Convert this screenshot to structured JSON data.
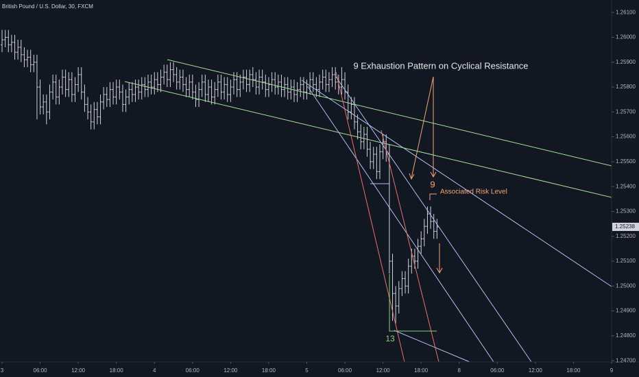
{
  "chart_data": {
    "type": "ohlc",
    "title": "British Pound / U.S. Dollar, 30, FXCM",
    "annotations": {
      "headline": "9 Exhaustion Pattern on Cyclical Resistance",
      "count_nine": "9",
      "risk": "Associated Risk Level",
      "count_thirteen": "13"
    },
    "last_price": 1.25238,
    "color": "#d1d4dc",
    "grid": false,
    "ylim": [
      1.24695,
      1.2615
    ],
    "yticks": [
      {
        "value": 1.261,
        "label": "1.26100"
      },
      {
        "value": 1.26,
        "label": "1.26000"
      },
      {
        "value": 1.259,
        "label": "1.25900"
      },
      {
        "value": 1.258,
        "label": "1.25800"
      },
      {
        "value": 1.257,
        "label": "1.25700"
      },
      {
        "value": 1.256,
        "label": "1.25600"
      },
      {
        "value": 1.255,
        "label": "1.25500"
      },
      {
        "value": 1.254,
        "label": "1.25400"
      },
      {
        "value": 1.253,
        "label": "1.25300"
      },
      {
        "value": 1.252,
        "label": "1.25200"
      },
      {
        "value": 1.251,
        "label": "1.25100"
      },
      {
        "value": 1.25,
        "label": "1.25000"
      },
      {
        "value": 1.249,
        "label": "1.24900"
      },
      {
        "value": 1.248,
        "label": "1.24800"
      },
      {
        "value": 1.247,
        "label": "1.24700"
      }
    ],
    "xlim": [
      -0.65,
      192
    ],
    "xticks": [
      {
        "value": 0,
        "label": "3"
      },
      {
        "value": 12,
        "label": "06:00"
      },
      {
        "value": 24,
        "label": "12:00"
      },
      {
        "value": 36,
        "label": "18:00"
      },
      {
        "value": 48,
        "label": "4"
      },
      {
        "value": 60,
        "label": "06:00"
      },
      {
        "value": 72,
        "label": "12:00"
      },
      {
        "value": 84,
        "label": "18:00"
      },
      {
        "value": 96,
        "label": "5"
      },
      {
        "value": 108,
        "label": "06:00"
      },
      {
        "value": 120,
        "label": "12:00"
      },
      {
        "value": 132,
        "label": "18:00"
      },
      {
        "value": 144,
        "label": "8"
      },
      {
        "value": 156,
        "label": "06:00"
      },
      {
        "value": 168,
        "label": "12:00"
      },
      {
        "value": 180,
        "label": "18:00"
      },
      {
        "value": 192,
        "label": "9"
      }
    ],
    "ohlc": [
      [
        1.2597,
        1.2603,
        1.2594,
        1.2599
      ],
      [
        1.2599,
        1.2603,
        1.2596,
        1.26
      ],
      [
        1.26,
        1.2603,
        1.2594,
        1.2597
      ],
      [
        1.2597,
        1.2601,
        1.2594,
        1.2598
      ],
      [
        1.2598,
        1.2601,
        1.2591,
        1.2594
      ],
      [
        1.2594,
        1.2599,
        1.2591,
        1.2596
      ],
      [
        1.2596,
        1.2599,
        1.259,
        1.2593
      ],
      [
        1.2593,
        1.2596,
        1.2588,
        1.2591
      ],
      [
        1.2591,
        1.2595,
        1.2588,
        1.2592
      ],
      [
        1.2592,
        1.2595,
        1.2586,
        1.2589
      ],
      [
        1.2589,
        1.2593,
        1.2586,
        1.259
      ],
      [
        1.259,
        1.2593,
        1.2567,
        1.258
      ],
      [
        1.258,
        1.2583,
        1.2569,
        1.2572
      ],
      [
        1.2572,
        1.2577,
        1.2569,
        1.2574
      ],
      [
        1.2574,
        1.2577,
        1.2565,
        1.257
      ],
      [
        1.257,
        1.2581,
        1.2567,
        1.2578
      ],
      [
        1.2578,
        1.2585,
        1.2575,
        1.2582
      ],
      [
        1.2582,
        1.2585,
        1.2573,
        1.2576
      ],
      [
        1.2576,
        1.2583,
        1.2573,
        1.258
      ],
      [
        1.258,
        1.2587,
        1.2577,
        1.2584
      ],
      [
        1.2584,
        1.2587,
        1.2576,
        1.2579
      ],
      [
        1.2579,
        1.2586,
        1.2576,
        1.2583
      ],
      [
        1.2583,
        1.2586,
        1.2574,
        1.2577
      ],
      [
        1.2577,
        1.2584,
        1.2574,
        1.2581
      ],
      [
        1.2581,
        1.2588,
        1.2578,
        1.2585
      ],
      [
        1.2585,
        1.2588,
        1.2575,
        1.2578
      ],
      [
        1.2578,
        1.2581,
        1.257,
        1.2573
      ],
      [
        1.2573,
        1.2576,
        1.2567,
        1.257
      ],
      [
        1.257,
        1.2573,
        1.2563,
        1.2566
      ],
      [
        1.2566,
        1.2574,
        1.2563,
        1.2571
      ],
      [
        1.2571,
        1.2574,
        1.2565,
        1.2568
      ],
      [
        1.2568,
        1.2577,
        1.2565,
        1.2574
      ],
      [
        1.2574,
        1.258,
        1.2571,
        1.2577
      ],
      [
        1.2577,
        1.258,
        1.2572,
        1.2575
      ],
      [
        1.2575,
        1.2582,
        1.2572,
        1.2579
      ],
      [
        1.2579,
        1.2582,
        1.2573,
        1.2576
      ],
      [
        1.2576,
        1.2583,
        1.2573,
        1.258
      ],
      [
        1.258,
        1.2583,
        1.2575,
        1.2578
      ],
      [
        1.2578,
        1.2581,
        1.257,
        1.2573
      ],
      [
        1.2573,
        1.2579,
        1.257,
        1.2576
      ],
      [
        1.2576,
        1.2582,
        1.2573,
        1.2579
      ],
      [
        1.2579,
        1.2582,
        1.2574,
        1.2577
      ],
      [
        1.2577,
        1.2583,
        1.2574,
        1.258
      ],
      [
        1.258,
        1.2583,
        1.2575,
        1.2578
      ],
      [
        1.2578,
        1.2584,
        1.2575,
        1.2581
      ],
      [
        1.2581,
        1.2584,
        1.2576,
        1.2579
      ],
      [
        1.2579,
        1.2585,
        1.2576,
        1.2582
      ],
      [
        1.2582,
        1.2585,
        1.2577,
        1.258
      ],
      [
        1.258,
        1.2586,
        1.2577,
        1.2583
      ],
      [
        1.2583,
        1.2586,
        1.2578,
        1.2581
      ],
      [
        1.2581,
        1.2587,
        1.2578,
        1.2584
      ],
      [
        1.2584,
        1.2589,
        1.2581,
        1.2586
      ],
      [
        1.2586,
        1.2589,
        1.258,
        1.2583
      ],
      [
        1.2583,
        1.259,
        1.258,
        1.2587
      ],
      [
        1.2587,
        1.259,
        1.2582,
        1.2585
      ],
      [
        1.2585,
        1.2588,
        1.2579,
        1.2582
      ],
      [
        1.2582,
        1.2587,
        1.2579,
        1.2584
      ],
      [
        1.2584,
        1.2587,
        1.2578,
        1.2581
      ],
      [
        1.2581,
        1.2584,
        1.2576,
        1.2579
      ],
      [
        1.2579,
        1.2585,
        1.2576,
        1.2582
      ],
      [
        1.2582,
        1.2585,
        1.2575,
        1.2578
      ],
      [
        1.2578,
        1.2581,
        1.2572,
        1.2575
      ],
      [
        1.2575,
        1.2582,
        1.2572,
        1.2579
      ],
      [
        1.2579,
        1.2585,
        1.2576,
        1.2582
      ],
      [
        1.2582,
        1.2585,
        1.2574,
        1.2577
      ],
      [
        1.2577,
        1.2583,
        1.2574,
        1.258
      ],
      [
        1.258,
        1.2583,
        1.2573,
        1.2576
      ],
      [
        1.2576,
        1.2582,
        1.2573,
        1.2579
      ],
      [
        1.2579,
        1.2585,
        1.2576,
        1.2582
      ],
      [
        1.2582,
        1.2585,
        1.2575,
        1.2578
      ],
      [
        1.2578,
        1.2584,
        1.2575,
        1.2581
      ],
      [
        1.2581,
        1.2584,
        1.2574,
        1.2577
      ],
      [
        1.2577,
        1.2583,
        1.2574,
        1.258
      ],
      [
        1.258,
        1.2586,
        1.2577,
        1.2583
      ],
      [
        1.2583,
        1.2586,
        1.2576,
        1.2579
      ],
      [
        1.2579,
        1.2585,
        1.2576,
        1.2582
      ],
      [
        1.2582,
        1.2587,
        1.2579,
        1.2584
      ],
      [
        1.2584,
        1.2587,
        1.2578,
        1.2581
      ],
      [
        1.2581,
        1.2587,
        1.2578,
        1.2585
      ],
      [
        1.2585,
        1.2588,
        1.258,
        1.2583
      ],
      [
        1.2583,
        1.2586,
        1.2577,
        1.258
      ],
      [
        1.258,
        1.2587,
        1.2577,
        1.2584
      ],
      [
        1.2584,
        1.2587,
        1.2579,
        1.2582
      ],
      [
        1.2582,
        1.2585,
        1.2576,
        1.2579
      ],
      [
        1.2579,
        1.2584,
        1.2576,
        1.2581
      ],
      [
        1.2581,
        1.2586,
        1.2578,
        1.2583
      ],
      [
        1.2583,
        1.2586,
        1.2577,
        1.258
      ],
      [
        1.258,
        1.2585,
        1.2577,
        1.2582
      ],
      [
        1.2582,
        1.2585,
        1.2576,
        1.2579
      ],
      [
        1.2579,
        1.2584,
        1.2576,
        1.2581
      ],
      [
        1.2581,
        1.2584,
        1.2575,
        1.2578
      ],
      [
        1.2578,
        1.2583,
        1.2575,
        1.258
      ],
      [
        1.258,
        1.2583,
        1.2574,
        1.2577
      ],
      [
        1.2577,
        1.2582,
        1.2574,
        1.2579
      ],
      [
        1.2579,
        1.2584,
        1.2576,
        1.2581
      ],
      [
        1.2581,
        1.2584,
        1.2575,
        1.2578
      ],
      [
        1.2578,
        1.2583,
        1.2575,
        1.258
      ],
      [
        1.258,
        1.2586,
        1.2577,
        1.2583
      ],
      [
        1.2583,
        1.2586,
        1.2578,
        1.2581
      ],
      [
        1.2581,
        1.2584,
        1.2576,
        1.2579
      ],
      [
        1.2579,
        1.2585,
        1.2576,
        1.2582
      ],
      [
        1.2582,
        1.2587,
        1.2579,
        1.2584
      ],
      [
        1.2584,
        1.2587,
        1.2578,
        1.2581
      ],
      [
        1.2581,
        1.2586,
        1.2578,
        1.2583
      ],
      [
        1.2583,
        1.2588,
        1.258,
        1.2585
      ],
      [
        1.2585,
        1.2588,
        1.2579,
        1.2582
      ],
      [
        1.2582,
        1.2585,
        1.2577,
        1.258
      ],
      [
        1.258,
        1.2588,
        1.2577,
        1.2583
      ],
      [
        1.2583,
        1.2586,
        1.2575,
        1.2578
      ],
      [
        1.2578,
        1.2581,
        1.2567,
        1.257
      ],
      [
        1.257,
        1.2576,
        1.2567,
        1.2573
      ],
      [
        1.2573,
        1.2576,
        1.2563,
        1.2566
      ],
      [
        1.2566,
        1.2569,
        1.2559,
        1.2562
      ],
      [
        1.2562,
        1.2565,
        1.2555,
        1.2558
      ],
      [
        1.2558,
        1.2564,
        1.2555,
        1.2561
      ],
      [
        1.2561,
        1.2564,
        1.2552,
        1.2555
      ],
      [
        1.2555,
        1.2558,
        1.2547,
        1.255
      ],
      [
        1.255,
        1.2556,
        1.2547,
        1.2553
      ],
      [
        1.2553,
        1.2556,
        1.2543,
        1.2546
      ],
      [
        1.2546,
        1.2557,
        1.2543,
        1.2554
      ],
      [
        1.2554,
        1.2561,
        1.2551,
        1.2558
      ],
      [
        1.2558,
        1.2561,
        1.255,
        1.2553
      ],
      [
        1.2553,
        1.2557,
        1.2505,
        1.251
      ],
      [
        1.251,
        1.2513,
        1.2486,
        1.2497
      ],
      [
        1.2497,
        1.25,
        1.2485,
        1.2492
      ],
      [
        1.2492,
        1.2502,
        1.2489,
        1.2499
      ],
      [
        1.2499,
        1.2506,
        1.2496,
        1.2503
      ],
      [
        1.2503,
        1.2506,
        1.2497,
        1.25
      ],
      [
        1.25,
        1.2511,
        1.2497,
        1.2508
      ],
      [
        1.2508,
        1.2515,
        1.2505,
        1.2512
      ],
      [
        1.2512,
        1.2515,
        1.2507,
        1.251
      ],
      [
        1.251,
        1.2519,
        1.2507,
        1.2516
      ],
      [
        1.2516,
        1.2522,
        1.2513,
        1.2519
      ],
      [
        1.2519,
        1.2527,
        1.2516,
        1.2524
      ],
      [
        1.2524,
        1.2532,
        1.2521,
        1.2529
      ],
      [
        1.2529,
        1.2532,
        1.2523,
        1.2526
      ],
      [
        1.2526,
        1.2529,
        1.2519,
        1.2522
      ],
      [
        1.2522,
        1.2527,
        1.2519,
        1.25238
      ]
    ]
  }
}
